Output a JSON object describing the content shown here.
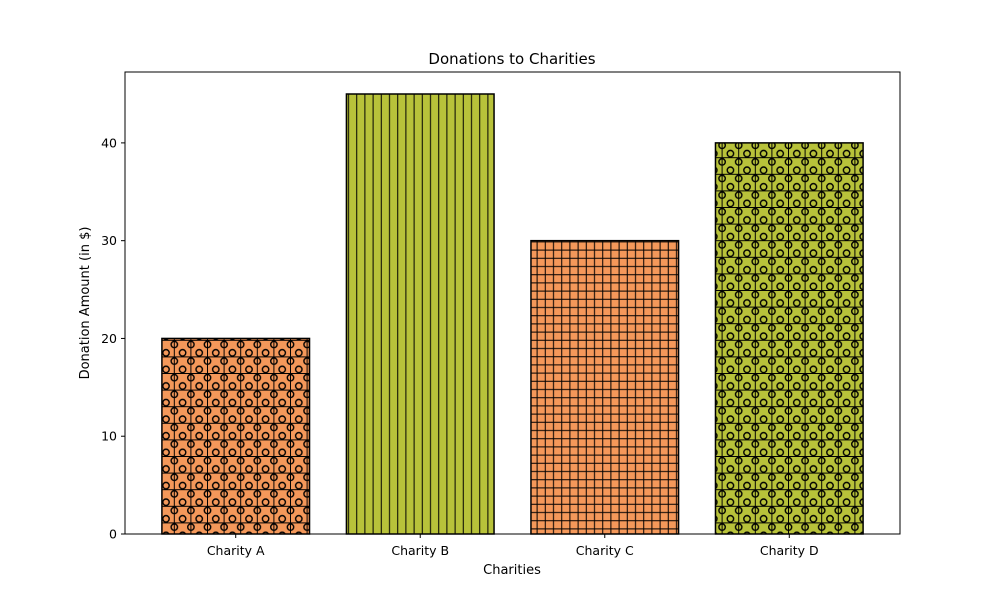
{
  "chart_data": {
    "type": "bar",
    "title": "Donations to Charities",
    "xlabel": "Charities",
    "ylabel": "Donation Amount (in $)",
    "categories": [
      "Charity A",
      "Charity B",
      "Charity C",
      "Charity D"
    ],
    "values": [
      20,
      45,
      30,
      40
    ],
    "ylim": [
      0,
      47.25
    ],
    "yticks": [
      0,
      10,
      20,
      30,
      40
    ],
    "grid": false,
    "colors": [
      "#f4985a",
      "#b8c23a",
      "#f4985a",
      "#b8c23a"
    ],
    "hatches": [
      "circle-grid",
      "vertical",
      "dense-grid",
      "circle-grid"
    ],
    "edge_color": "#000000"
  }
}
